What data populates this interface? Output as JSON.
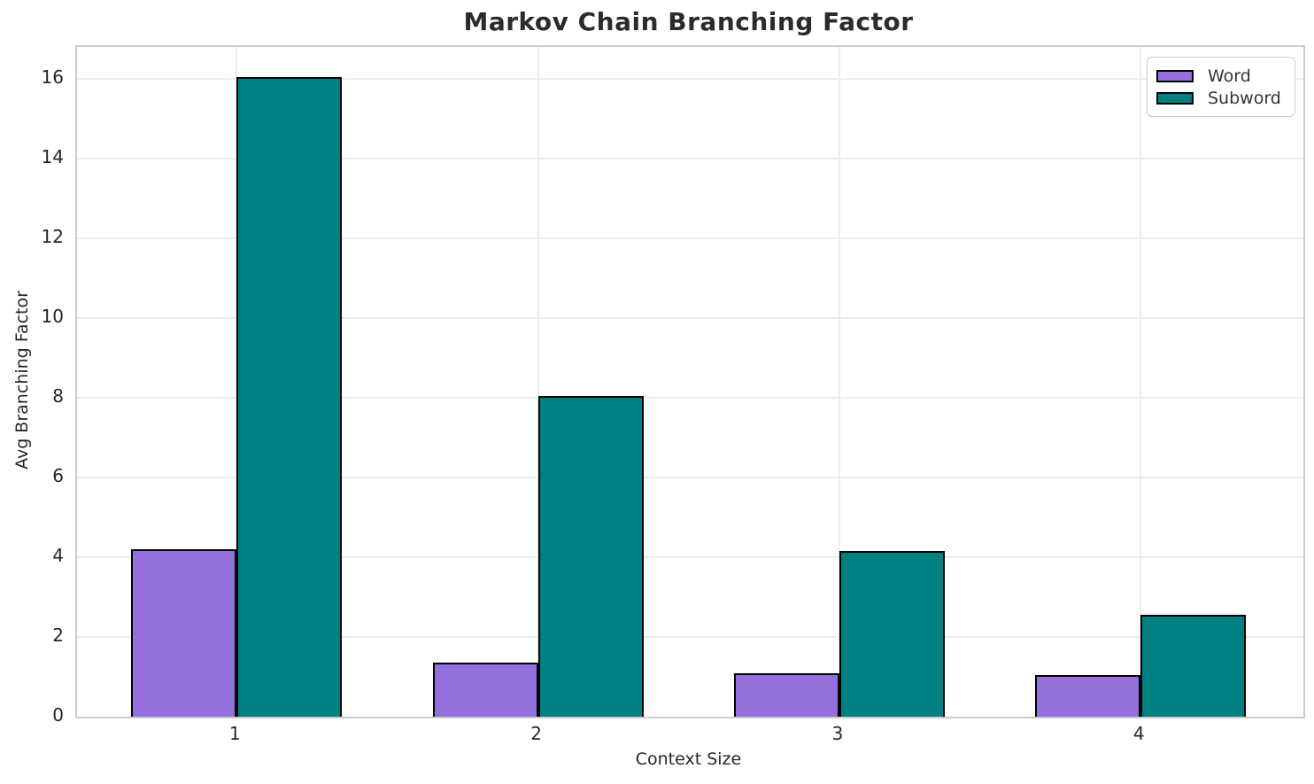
{
  "chart_data": {
    "type": "bar",
    "title": "Markov Chain Branching Factor",
    "xlabel": "Context Size",
    "ylabel": "Avg Branching Factor",
    "categories": [
      "1",
      "2",
      "3",
      "4"
    ],
    "series": [
      {
        "name": "Word",
        "color": "#9370DB",
        "values": [
          4.2,
          1.35,
          1.1,
          1.05
        ]
      },
      {
        "name": "Subword",
        "color": "#008080",
        "values": [
          16.05,
          8.05,
          4.15,
          2.55
        ]
      }
    ],
    "yticks": [
      0,
      2,
      4,
      6,
      8,
      10,
      12,
      14,
      16
    ],
    "ylim": [
      0,
      16.8
    ],
    "xlim": [
      -0.53,
      3.54
    ],
    "bar_width": 0.35,
    "bar_edge_color": "#000000",
    "grid": true,
    "grid_color": "#ececec",
    "spine_color": "#cccccc",
    "background_color": "#ffffff",
    "text_color": "#262626",
    "title_color": "#2b2b2b",
    "legend_position": "upper right"
  }
}
